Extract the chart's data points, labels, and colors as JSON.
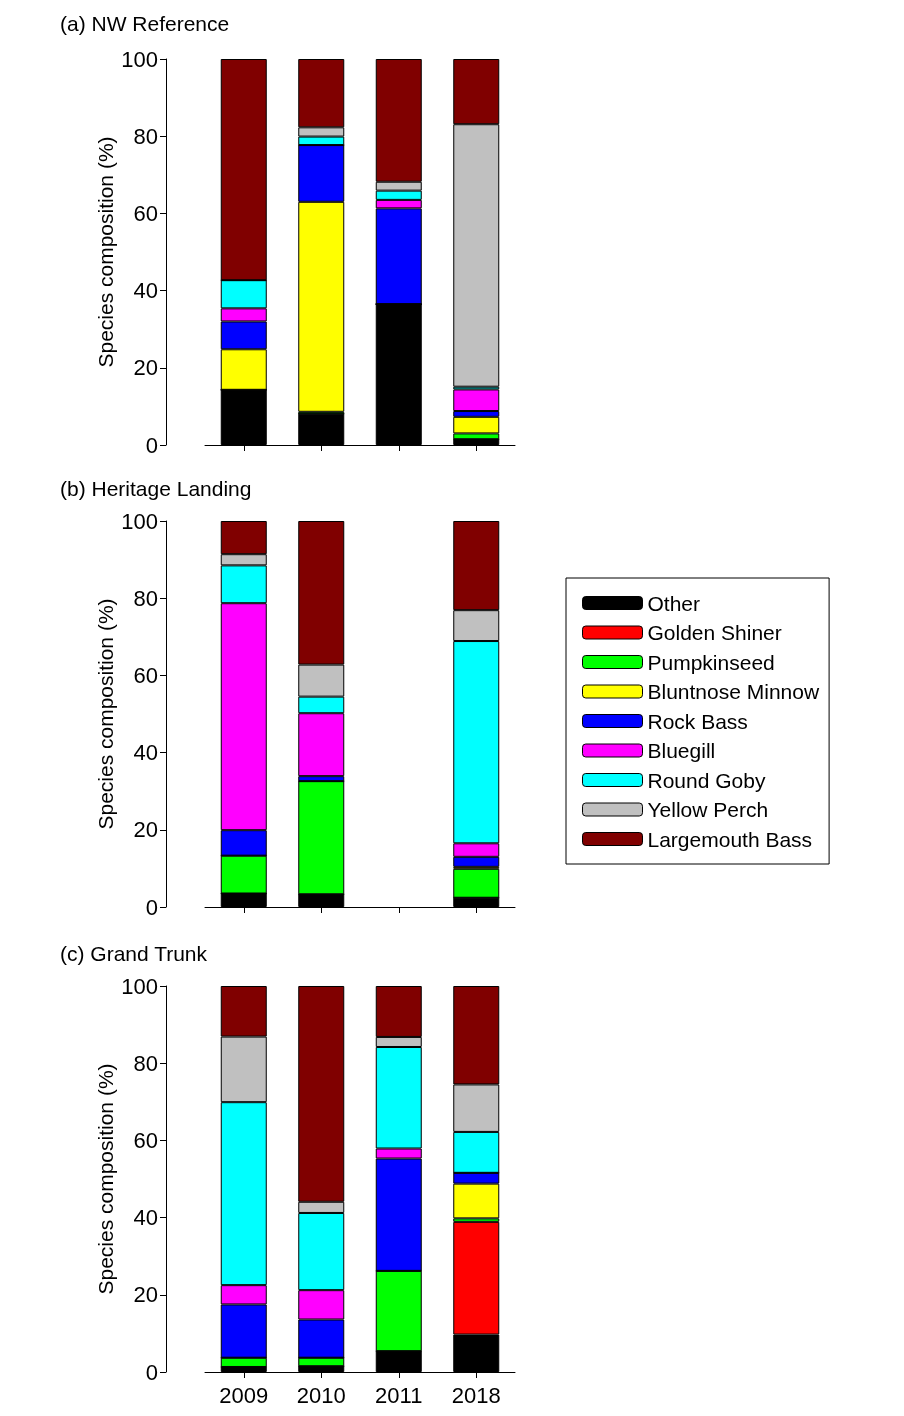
{
  "chart_data": [
    {
      "type": "bar",
      "title": "(a) NW Reference",
      "ylabel": "Species composition (%)",
      "categories": [
        "2009",
        "2010",
        "2011",
        "2018"
      ],
      "stacked": true,
      "ylim": [
        0,
        100
      ],
      "yticks": [
        0,
        20,
        40,
        60,
        80,
        100
      ],
      "tick_labels": "y",
      "series": [
        {
          "color": "#000000",
          "values": [
            14.3,
            8.1,
            36.5,
            1.5
          ]
        },
        {
          "color": "#ff0000",
          "values": [
            0,
            0,
            0,
            0
          ]
        },
        {
          "color": "#00ff00",
          "values": [
            0,
            0.5,
            0,
            1.5
          ]
        },
        {
          "color": "#ffff00",
          "values": [
            10.5,
            54.4,
            0,
            4.3
          ]
        },
        {
          "color": "#0000ff",
          "values": [
            7.2,
            14.7,
            24.8,
            1.5
          ]
        },
        {
          "color": "#ff00ff",
          "values": [
            3.4,
            0,
            2.2,
            5.6
          ]
        },
        {
          "color": "#00ffff",
          "values": [
            7.3,
            2.2,
            2.4,
            0.7
          ]
        },
        {
          "color": "#c0c0c0",
          "values": [
            0,
            2.4,
            2.3,
            68.0
          ]
        },
        {
          "color": "#800000",
          "values": [
            57.3,
            17.7,
            31.8,
            16.9
          ]
        }
      ]
    },
    {
      "type": "bar",
      "title": "(b) Heritage Landing",
      "ylabel": "Species composition (%)",
      "categories": [
        "2009",
        "2010",
        "2011",
        "2018"
      ],
      "stacked": true,
      "ylim": [
        0,
        100
      ],
      "yticks": [
        0,
        20,
        40,
        60,
        80,
        100
      ],
      "tick_labels": "y",
      "legend": "right",
      "series": [
        {
          "name": "Other",
          "color": "#000000",
          "values": [
            3.5,
            3.3,
            null,
            2.4
          ]
        },
        {
          "name": "Golden Shiner",
          "color": "#ff0000",
          "values": [
            0,
            0,
            null,
            0
          ]
        },
        {
          "name": "Pumpkinseed",
          "color": "#00ff00",
          "values": [
            9.8,
            29.3,
            null,
            7.5
          ]
        },
        {
          "name": "Bluntnose Minnow",
          "color": "#ffff00",
          "values": [
            0,
            0,
            null,
            0.5
          ]
        },
        {
          "name": "Rock Bass",
          "color": "#0000ff",
          "values": [
            6.6,
            1.3,
            null,
            2.6
          ]
        },
        {
          "name": "Bluegill",
          "color": "#ff00ff",
          "values": [
            58.8,
            16.3,
            null,
            3.5
          ]
        },
        {
          "name": "Round Goby",
          "color": "#00ffff",
          "values": [
            9.8,
            4.3,
            null,
            52.4
          ]
        },
        {
          "name": "Yellow Perch",
          "color": "#c0c0c0",
          "values": [
            2.9,
            8.3,
            null,
            8.0
          ]
        },
        {
          "name": "Largemouth Bass",
          "color": "#800000",
          "values": [
            8.6,
            37.2,
            null,
            23.1
          ]
        }
      ]
    },
    {
      "type": "bar",
      "title": "(c) Grand Trunk",
      "ylabel": "Species composition (%)",
      "categories": [
        "2009",
        "2010",
        "2011",
        "2018"
      ],
      "stacked": true,
      "ylim": [
        0,
        100
      ],
      "yticks": [
        0,
        20,
        40,
        60,
        80,
        100
      ],
      "series": [
        {
          "color": "#000000",
          "values": [
            1.3,
            1.5,
            5.4,
            9.7
          ]
        },
        {
          "color": "#ff0000",
          "values": [
            0,
            0,
            0,
            29.2
          ]
        },
        {
          "color": "#00ff00",
          "values": [
            2.4,
            2.2,
            20.8,
            0.9
          ]
        },
        {
          "color": "#ffff00",
          "values": [
            0,
            0,
            0,
            9.0
          ]
        },
        {
          "color": "#0000ff",
          "values": [
            13.8,
            9.9,
            29.1,
            2.8
          ]
        },
        {
          "color": "#ff00ff",
          "values": [
            5.0,
            7.6,
            2.6,
            0
          ]
        },
        {
          "color": "#00ffff",
          "values": [
            47.4,
            20.0,
            26.3,
            10.6
          ]
        },
        {
          "color": "#c0c0c0",
          "values": [
            17.0,
            2.9,
            2.6,
            12.3
          ]
        },
        {
          "color": "#800000",
          "values": [
            13.1,
            55.9,
            13.2,
            25.5
          ]
        }
      ]
    }
  ]
}
